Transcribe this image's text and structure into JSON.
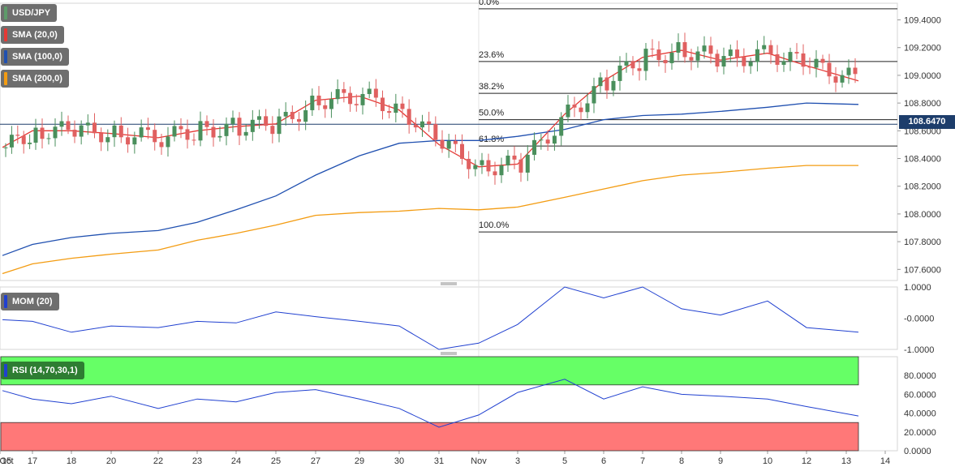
{
  "panels": {
    "price": {
      "legend": [
        {
          "label": "USD/JPY",
          "color": "#5e9b6a"
        },
        {
          "label": "SMA (20,0)",
          "color": "#e53935"
        },
        {
          "label": "SMA (100,0)",
          "color": "#2050b0"
        },
        {
          "label": "SMA (200,0)",
          "color": "#f39c12"
        }
      ],
      "current_price": "108.6470",
      "y_ticks": [
        "109.4000",
        "109.2000",
        "109.0000",
        "108.8000",
        "108.6000",
        "108.4000",
        "108.2000",
        "108.0000",
        "107.8000",
        "107.6000"
      ],
      "fib_levels": [
        {
          "label": "0.0%",
          "value": 109.48
        },
        {
          "label": "23.6%",
          "value": 109.1
        },
        {
          "label": "38.2%",
          "value": 108.87
        },
        {
          "label": "50.0%",
          "value": 108.68
        },
        {
          "label": "61.8%",
          "value": 108.49
        },
        {
          "label": "100.0%",
          "value": 107.87
        }
      ]
    },
    "momentum": {
      "legend": "MOM (20)",
      "y_ticks": [
        "1.0000",
        "-0.0000",
        "-1.0000"
      ]
    },
    "rsi": {
      "legend": "RSI (14,70,30,1)",
      "y_ticks": [
        "80.0000",
        "60.0000",
        "40.0000",
        "20.0000",
        "0.0000"
      ]
    }
  },
  "x_axis": {
    "labels": [
      "Oct",
      "17",
      "18",
      "20",
      "22",
      "23",
      "24",
      "25",
      "27",
      "29",
      "30",
      "31",
      "Nov",
      "3",
      "5",
      "6",
      "7",
      "8",
      "9",
      "10",
      "12",
      "13",
      "14",
      "15"
    ]
  },
  "colors": {
    "up": "#4a8f5c",
    "down": "#e06060",
    "sma20": "#e53935",
    "sma100": "#2050b0",
    "sma200": "#f39c12",
    "mom": "#2040d0",
    "rsi_overbought": "#66ff66",
    "rsi_oversold": "#ff7878"
  },
  "chart_data": [
    {
      "type": "line",
      "title": "USD/JPY",
      "ylim": [
        107.52,
        109.52
      ],
      "x": [
        "17",
        "18",
        "20",
        "22",
        "23",
        "24",
        "25",
        "27",
        "29",
        "30",
        "31",
        "Nov",
        "3",
        "5",
        "6",
        "7",
        "8",
        "9",
        "10",
        "12",
        "13",
        "14"
      ],
      "series": [
        {
          "name": "SMA (20,0)",
          "values": [
            108.48,
            108.6,
            108.6,
            108.58,
            108.55,
            108.6,
            108.63,
            108.65,
            108.82,
            108.85,
            108.75,
            108.5,
            108.34,
            108.36,
            108.72,
            108.96,
            109.13,
            109.18,
            109.11,
            109.16,
            109.07,
            108.96
          ]
        },
        {
          "name": "SMA (100,0)",
          "values": [
            107.7,
            107.78,
            107.83,
            107.86,
            107.88,
            107.94,
            108.03,
            108.13,
            108.28,
            108.42,
            108.51,
            108.53,
            108.53,
            108.56,
            108.61,
            108.68,
            108.71,
            108.72,
            108.74,
            108.77,
            108.8,
            108.79
          ]
        },
        {
          "name": "SMA (200,0)",
          "values": [
            107.57,
            107.64,
            107.68,
            107.71,
            107.74,
            107.81,
            107.86,
            107.92,
            107.99,
            108.01,
            108.02,
            108.04,
            108.03,
            108.05,
            108.12,
            108.18,
            108.24,
            108.28,
            108.3,
            108.33,
            108.35,
            108.35
          ]
        }
      ],
      "fibonacci": [
        109.48,
        109.1,
        108.87,
        108.68,
        108.49,
        107.87
      ]
    },
    {
      "type": "line",
      "title": "MOM (20)",
      "ylim": [
        -1.0,
        1.0
      ],
      "x": [
        "17",
        "18",
        "20",
        "22",
        "23",
        "24",
        "25",
        "27",
        "29",
        "30",
        "31",
        "Nov",
        "3",
        "5",
        "6",
        "7",
        "8",
        "9",
        "10",
        "12",
        "13",
        "14"
      ],
      "series": [
        {
          "name": "MOM (20)",
          "values": [
            -0.05,
            -0.1,
            -0.45,
            -0.25,
            -0.3,
            -0.1,
            -0.15,
            0.2,
            0.05,
            -0.1,
            -0.25,
            -1.0,
            -0.8,
            -0.2,
            1.05,
            0.65,
            1.0,
            0.3,
            0.1,
            0.55,
            -0.3,
            -0.45
          ]
        }
      ]
    },
    {
      "type": "line",
      "title": "RSI (14,70,30,1)",
      "ylim": [
        0,
        100
      ],
      "x": [
        "17",
        "18",
        "20",
        "22",
        "23",
        "24",
        "25",
        "27",
        "29",
        "30",
        "31",
        "Nov",
        "3",
        "5",
        "6",
        "7",
        "8",
        "9",
        "10",
        "12",
        "13",
        "14"
      ],
      "series": [
        {
          "name": "RSI (14,70,30,1)",
          "values": [
            64,
            55,
            50,
            58,
            45,
            55,
            52,
            62,
            65,
            55,
            45,
            25,
            38,
            62,
            76,
            55,
            68,
            60,
            58,
            55,
            47,
            37
          ]
        }
      ]
    }
  ]
}
